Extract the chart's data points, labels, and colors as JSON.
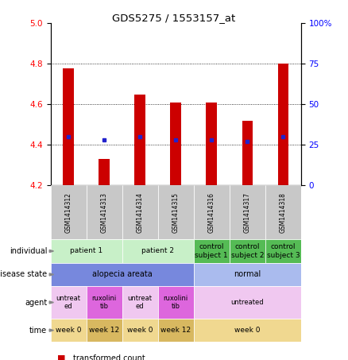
{
  "title": "GDS5275 / 1553157_at",
  "samples": [
    "GSM1414312",
    "GSM1414313",
    "GSM1414314",
    "GSM1414315",
    "GSM1414316",
    "GSM1414317",
    "GSM1414318"
  ],
  "transformed_count": [
    4.78,
    4.33,
    4.65,
    4.61,
    4.61,
    4.52,
    4.8
  ],
  "percentile_rank_pct": [
    30,
    28,
    30,
    28,
    28,
    27,
    30
  ],
  "ylim_left": [
    4.2,
    5.0
  ],
  "ylim_right": [
    0,
    100
  ],
  "yticks_left": [
    4.2,
    4.4,
    4.6,
    4.8,
    5.0
  ],
  "yticks_right": [
    0,
    25,
    50,
    75,
    100
  ],
  "bar_color": "#cc0000",
  "dot_color": "#2222cc",
  "bar_base": 4.2,
  "individual_labels": [
    [
      "patient 1",
      0,
      2
    ],
    [
      "patient 2",
      2,
      4
    ],
    [
      "control\nsubject 1",
      4,
      5
    ],
    [
      "control\nsubject 2",
      5,
      6
    ],
    [
      "control\nsubject 3",
      6,
      7
    ]
  ],
  "individual_colors": [
    "#c8f0c8",
    "#c8f0c8",
    "#c8f0c8",
    "#c8f0c8",
    "#66cc66",
    "#66cc66",
    "#66cc66"
  ],
  "individual_span_colors": {
    "patient 1": "#c8f0c8",
    "patient 2": "#c8f0c8",
    "control\nsubject 1": "#55bb55",
    "control\nsubject 2": "#55bb55",
    "control\nsubject 3": "#55bb55"
  },
  "disease_state_labels": [
    [
      "alopecia areata",
      0,
      4
    ],
    [
      "normal",
      4,
      7
    ]
  ],
  "disease_state_colors": {
    "alopecia areata": "#7788dd",
    "normal": "#aabbee"
  },
  "agent_labels": [
    [
      "untreat\ned",
      0,
      1
    ],
    [
      "ruxolini\ntib",
      1,
      2
    ],
    [
      "untreat\ned",
      2,
      3
    ],
    [
      "ruxolini\ntib",
      3,
      4
    ],
    [
      "untreated",
      4,
      7
    ]
  ],
  "agent_colors": {
    "untreat\ned": "#f0c8f0",
    "ruxolini\ntib": "#dd66dd",
    "untreated": "#f0c8f0"
  },
  "time_labels": [
    [
      "week 0",
      0,
      1
    ],
    [
      "week 12",
      1,
      2
    ],
    [
      "week 0",
      2,
      3
    ],
    [
      "week 12",
      3,
      4
    ],
    [
      "week 0",
      4,
      7
    ]
  ],
  "time_colors": {
    "week 0": "#f0d890",
    "week 12": "#d8b860"
  },
  "row_labels": [
    "individual",
    "disease state",
    "agent",
    "time"
  ],
  "gsm_bg": "#c8c8c8"
}
